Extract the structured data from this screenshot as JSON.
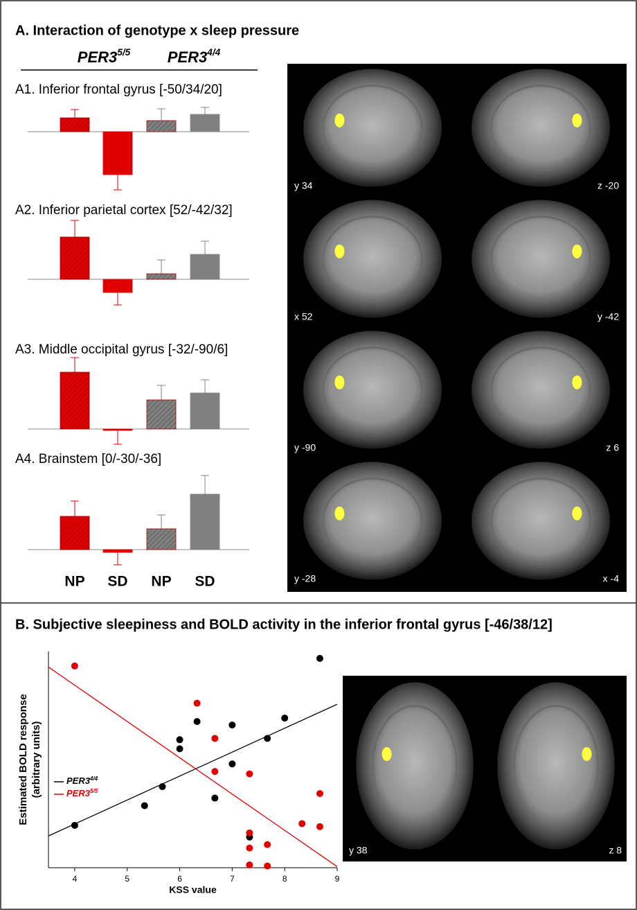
{
  "panel_a": {
    "title": "A. Interaction of genotype x sleep pressure",
    "genotypes": [
      {
        "name": "PER3",
        "sup": "5/5"
      },
      {
        "name": "PER3",
        "sup": "4/4"
      }
    ],
    "categories": [
      "NP",
      "SD",
      "NP",
      "SD"
    ],
    "colors": [
      "#e00000",
      "#e00000",
      "#808080",
      "#808080"
    ],
    "hatched": [
      true,
      false,
      true,
      false
    ],
    "images": [
      "y 34",
      "z -20",
      "x 52",
      "y -42",
      "y -90",
      "z 6",
      "y -28",
      "x -4"
    ]
  },
  "panel_b": {
    "title": "B. Subjective sleepiness and BOLD activity in the inferior frontal gyrus [-46/38/12]",
    "images": [
      "y 38",
      "z 8"
    ]
  },
  "chart_data": [
    {
      "type": "bar",
      "title": "A1. Inferior frontal gyrus [-50/34/20]",
      "values": [
        20,
        -62,
        16,
        25
      ],
      "errors": [
        12,
        22,
        17,
        10
      ]
    },
    {
      "type": "bar",
      "title": "A2. Inferior parietal cortex [52/-42/32]",
      "values": [
        61,
        -19,
        8,
        36
      ],
      "errors": [
        24,
        18,
        20,
        19
      ]
    },
    {
      "type": "bar",
      "title": "A3. Middle occipital gyrus [-32/-90/6]",
      "values": [
        82,
        -2,
        42,
        52
      ],
      "errors": [
        21,
        20,
        21,
        19
      ]
    },
    {
      "type": "bar",
      "title": "A4. Brainstem  [0/-30/-36]",
      "values": [
        48,
        -4,
        30,
        80
      ],
      "errors": [
        22,
        18,
        20,
        27
      ]
    },
    {
      "type": "scatter",
      "xlabel": "KSS value",
      "ylabel": [
        "Estimated BOLD response",
        "(arbitrary units)"
      ],
      "xlim": [
        3.5,
        9
      ],
      "ylim": [
        0,
        10
      ],
      "xticks": [
        4,
        5,
        6,
        7,
        8,
        9
      ],
      "series": [
        {
          "name": "PER3",
          "name_sup": "4/4",
          "color": "#000000",
          "x": [
            4,
            5.33,
            5.67,
            6,
            6,
            6.33,
            6.67,
            7,
            7,
            7.33,
            7.67,
            8,
            8.67
          ],
          "values": [
            1.96,
            2.87,
            3.75,
            5.92,
            5.5,
            6.76,
            3.22,
            6.6,
            4.8,
            1.42,
            5.98,
            6.92,
            9.68
          ],
          "trend": [
            1.47,
            7.56
          ]
        },
        {
          "name": "PER3",
          "name_sup": "5/5",
          "color": "#e00000",
          "x": [
            4,
            6.33,
            6.67,
            6.67,
            7.33,
            7.33,
            7.33,
            7.33,
            7.67,
            7.67,
            8.33,
            8.67,
            8.67
          ],
          "values": [
            9.33,
            7.61,
            5.98,
            4.45,
            4.34,
            1.61,
            0.91,
            0.13,
            1.07,
            0.08,
            2.04,
            3.43,
            1.9
          ],
          "trend": [
            9.28,
            0.05
          ]
        }
      ]
    }
  ]
}
